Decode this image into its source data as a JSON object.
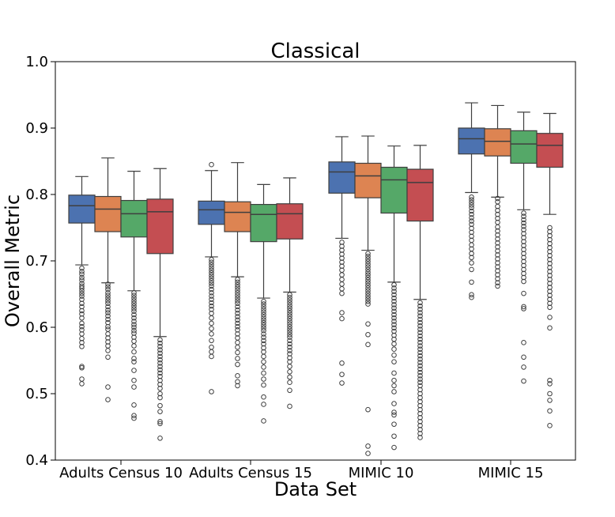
{
  "chart_data": {
    "type": "box",
    "title": "Classical",
    "xlabel": "Data Set",
    "ylabel": "Overall Metric",
    "ylim": [
      0.4,
      1.0
    ],
    "yticks": [
      "0.4",
      "0.5",
      "0.6",
      "0.7",
      "0.8",
      "0.9",
      "1.0"
    ],
    "categories": [
      "Adults Census 10",
      "Adults Census 15",
      "MIMIC 10",
      "MIMIC 15"
    ],
    "series_colors": [
      "#4c72b0",
      "#dd8452",
      "#55a868",
      "#c44e52"
    ],
    "groups": [
      {
        "category": "Adults Census 10",
        "boxes": [
          {
            "whisker_low": 0.694,
            "q1": 0.757,
            "median": 0.783,
            "q3": 0.799,
            "whisker_high": 0.827,
            "outliers": [
              0.689,
              0.684,
              0.68,
              0.675,
              0.671,
              0.666,
              0.662,
              0.659,
              0.655,
              0.651,
              0.647,
              0.642,
              0.636,
              0.631,
              0.625,
              0.62,
              0.614,
              0.606,
              0.601,
              0.596,
              0.59,
              0.583,
              0.577,
              0.571,
              0.541,
              0.539,
              0.522,
              0.515
            ]
          },
          {
            "whisker_low": 0.667,
            "q1": 0.744,
            "median": 0.778,
            "q3": 0.797,
            "whisker_high": 0.855,
            "outliers": [
              0.665,
              0.661,
              0.657,
              0.652,
              0.648,
              0.644,
              0.64,
              0.636,
              0.631,
              0.626,
              0.622,
              0.617,
              0.612,
              0.607,
              0.601,
              0.597,
              0.59,
              0.584,
              0.578,
              0.572,
              0.565,
              0.555,
              0.51,
              0.491
            ]
          },
          {
            "whisker_low": 0.655,
            "q1": 0.736,
            "median": 0.771,
            "q3": 0.791,
            "whisker_high": 0.835,
            "outliers": [
              0.652,
              0.648,
              0.644,
              0.64,
              0.636,
              0.632,
              0.628,
              0.624,
              0.619,
              0.614,
              0.609,
              0.604,
              0.6,
              0.595,
              0.591,
              0.585,
              0.579,
              0.572,
              0.563,
              0.553,
              0.548,
              0.535,
              0.52,
              0.51,
              0.483,
              0.467,
              0.463
            ]
          },
          {
            "whisker_low": 0.586,
            "q1": 0.711,
            "median": 0.774,
            "q3": 0.793,
            "whisker_high": 0.839,
            "outliers": [
              0.581,
              0.576,
              0.571,
              0.566,
              0.561,
              0.556,
              0.551,
              0.546,
              0.541,
              0.536,
              0.531,
              0.526,
              0.52,
              0.514,
              0.508,
              0.5,
              0.494,
              0.482,
              0.473,
              0.458,
              0.455,
              0.433
            ]
          }
        ]
      },
      {
        "category": "Adults Census 15",
        "boxes": [
          {
            "whisker_low": 0.706,
            "q1": 0.755,
            "median": 0.777,
            "q3": 0.79,
            "whisker_high": 0.836,
            "outliers": [
              0.845,
              0.702,
              0.698,
              0.694,
              0.69,
              0.686,
              0.682,
              0.678,
              0.674,
              0.67,
              0.666,
              0.662,
              0.657,
              0.652,
              0.647,
              0.642,
              0.637,
              0.632,
              0.627,
              0.621,
              0.614,
              0.606,
              0.598,
              0.59,
              0.58,
              0.57,
              0.563,
              0.556,
              0.503
            ]
          },
          {
            "whisker_low": 0.676,
            "q1": 0.744,
            "median": 0.773,
            "q3": 0.789,
            "whisker_high": 0.848,
            "outliers": [
              0.672,
              0.668,
              0.664,
              0.66,
              0.656,
              0.652,
              0.648,
              0.644,
              0.64,
              0.636,
              0.631,
              0.626,
              0.621,
              0.616,
              0.611,
              0.606,
              0.601,
              0.596,
              0.59,
              0.584,
              0.577,
              0.57,
              0.562,
              0.553,
              0.544,
              0.527,
              0.518,
              0.512
            ]
          },
          {
            "whisker_low": 0.644,
            "q1": 0.729,
            "median": 0.77,
            "q3": 0.785,
            "whisker_high": 0.815,
            "outliers": [
              0.639,
              0.635,
              0.631,
              0.627,
              0.623,
              0.619,
              0.615,
              0.611,
              0.607,
              0.603,
              0.599,
              0.595,
              0.59,
              0.585,
              0.58,
              0.575,
              0.569,
              0.563,
              0.556,
              0.548,
              0.54,
              0.531,
              0.522,
              0.513,
              0.495,
              0.484,
              0.459
            ]
          },
          {
            "whisker_low": 0.653,
            "q1": 0.733,
            "median": 0.771,
            "q3": 0.786,
            "whisker_high": 0.825,
            "outliers": [
              0.649,
              0.645,
              0.641,
              0.637,
              0.633,
              0.629,
              0.625,
              0.621,
              0.617,
              0.613,
              0.609,
              0.605,
              0.601,
              0.597,
              0.593,
              0.589,
              0.585,
              0.58,
              0.575,
              0.57,
              0.565,
              0.56,
              0.554,
              0.548,
              0.541,
              0.533,
              0.525,
              0.517,
              0.505,
              0.481
            ]
          }
        ]
      },
      {
        "category": "MIMIC 10",
        "boxes": [
          {
            "whisker_low": 0.734,
            "q1": 0.802,
            "median": 0.834,
            "q3": 0.849,
            "whisker_high": 0.887,
            "outliers": [
              0.728,
              0.722,
              0.716,
              0.71,
              0.704,
              0.698,
              0.692,
              0.686,
              0.679,
              0.672,
              0.665,
              0.658,
              0.651,
              0.622,
              0.613,
              0.546,
              0.529,
              0.516
            ]
          },
          {
            "whisker_low": 0.716,
            "q1": 0.795,
            "median": 0.828,
            "q3": 0.847,
            "whisker_high": 0.888,
            "outliers": [
              0.711,
              0.707,
              0.703,
              0.699,
              0.695,
              0.691,
              0.687,
              0.683,
              0.679,
              0.675,
              0.671,
              0.667,
              0.663,
              0.659,
              0.655,
              0.651,
              0.647,
              0.643,
              0.639,
              0.635,
              0.605,
              0.589,
              0.574,
              0.476,
              0.421,
              0.41
            ]
          },
          {
            "whisker_low": 0.668,
            "q1": 0.772,
            "median": 0.822,
            "q3": 0.841,
            "whisker_high": 0.873,
            "outliers": [
              0.664,
              0.659,
              0.654,
              0.649,
              0.644,
              0.639,
              0.634,
              0.629,
              0.624,
              0.619,
              0.614,
              0.609,
              0.604,
              0.599,
              0.594,
              0.588,
              0.582,
              0.575,
              0.567,
              0.558,
              0.548,
              0.531,
              0.52,
              0.512,
              0.503,
              0.485,
              0.472,
              0.468,
              0.454,
              0.436,
              0.419
            ]
          },
          {
            "whisker_low": 0.642,
            "q1": 0.76,
            "median": 0.818,
            "q3": 0.838,
            "whisker_high": 0.874,
            "outliers": [
              0.637,
              0.632,
              0.627,
              0.622,
              0.617,
              0.612,
              0.607,
              0.602,
              0.597,
              0.592,
              0.587,
              0.582,
              0.577,
              0.572,
              0.567,
              0.562,
              0.557,
              0.552,
              0.547,
              0.542,
              0.537,
              0.532,
              0.527,
              0.522,
              0.517,
              0.512,
              0.506,
              0.5,
              0.494,
              0.488,
              0.482,
              0.476,
              0.47,
              0.464,
              0.458,
              0.452,
              0.446,
              0.44,
              0.434
            ]
          }
        ]
      },
      {
        "category": "MIMIC 15",
        "boxes": [
          {
            "whisker_low": 0.803,
            "q1": 0.861,
            "median": 0.884,
            "q3": 0.9,
            "whisker_high": 0.938,
            "outliers": [
              0.796,
              0.792,
              0.788,
              0.784,
              0.78,
              0.775,
              0.77,
              0.765,
              0.76,
              0.755,
              0.749,
              0.743,
              0.737,
              0.731,
              0.724,
              0.718,
              0.711,
              0.705,
              0.697,
              0.687,
              0.668,
              0.649,
              0.645
            ]
          },
          {
            "whisker_low": 0.796,
            "q1": 0.858,
            "median": 0.88,
            "q3": 0.899,
            "whisker_high": 0.934,
            "outliers": [
              0.794,
              0.789,
              0.782,
              0.776,
              0.77,
              0.764,
              0.758,
              0.751,
              0.745,
              0.739,
              0.733,
              0.727,
              0.721,
              0.715,
              0.709,
              0.703,
              0.697,
              0.691,
              0.685,
              0.679,
              0.673,
              0.667,
              0.662
            ]
          },
          {
            "whisker_low": 0.777,
            "q1": 0.847,
            "median": 0.876,
            "q3": 0.896,
            "whisker_high": 0.924,
            "outliers": [
              0.772,
              0.767,
              0.762,
              0.757,
              0.752,
              0.747,
              0.741,
              0.735,
              0.729,
              0.723,
              0.717,
              0.711,
              0.705,
              0.699,
              0.693,
              0.687,
              0.681,
              0.675,
              0.669,
              0.651,
              0.631,
              0.628,
              0.577,
              0.555,
              0.54,
              0.519
            ]
          },
          {
            "whisker_low": 0.77,
            "q1": 0.841,
            "median": 0.874,
            "q3": 0.892,
            "whisker_high": 0.922,
            "outliers": [
              0.75,
              0.744,
              0.738,
              0.732,
              0.726,
              0.72,
              0.714,
              0.708,
              0.702,
              0.696,
              0.69,
              0.684,
              0.678,
              0.672,
              0.666,
              0.66,
              0.654,
              0.648,
              0.642,
              0.636,
              0.63,
              0.615,
              0.599,
              0.52,
              0.515,
              0.5,
              0.49,
              0.474,
              0.452
            ]
          }
        ]
      }
    ]
  }
}
